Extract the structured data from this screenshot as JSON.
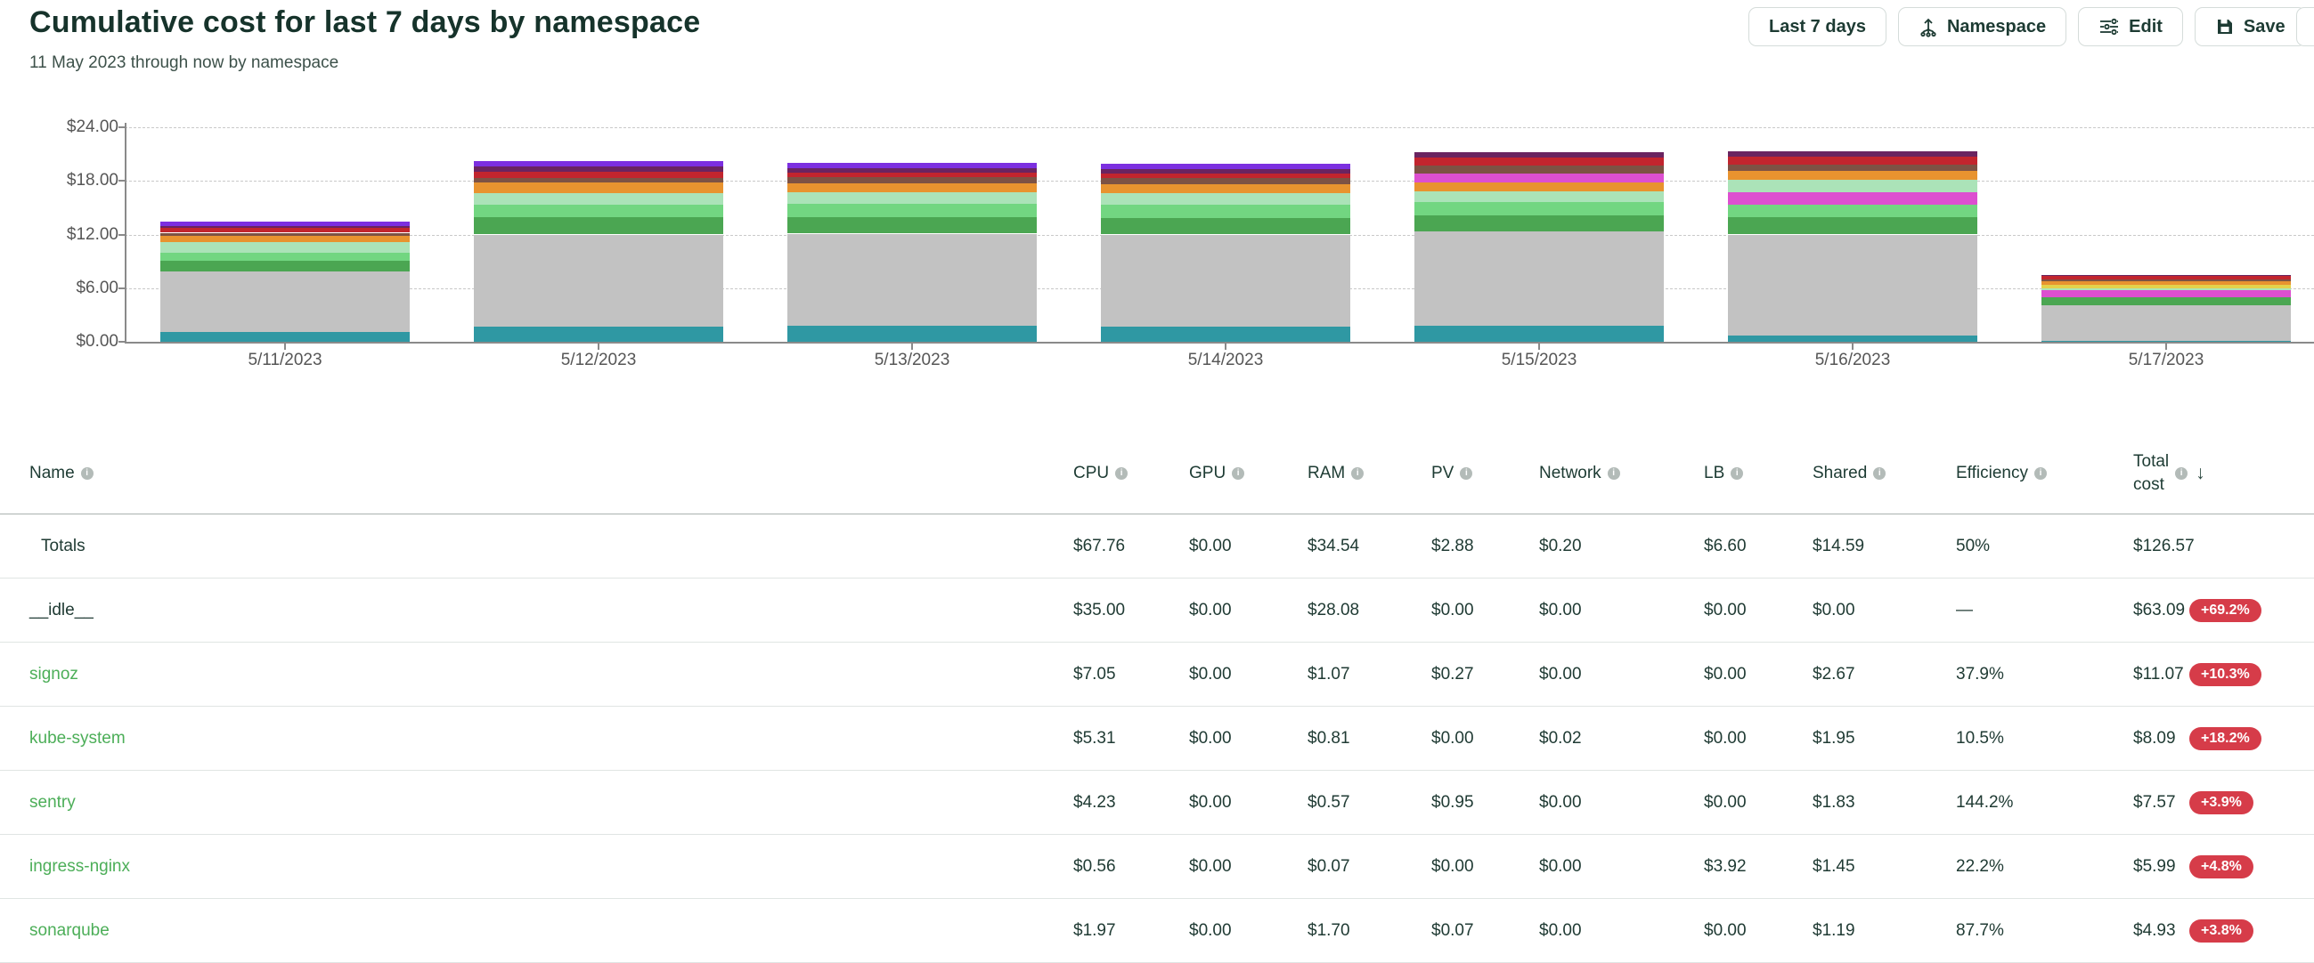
{
  "header": {
    "title": "Cumulative cost for last 7 days by namespace",
    "subtitle": "11 May 2023 through now by namespace",
    "buttons": [
      {
        "label": "Last 7 days",
        "icon": "none"
      },
      {
        "label": "Namespace",
        "icon": "aggregate-icon"
      },
      {
        "label": "Edit",
        "icon": "sliders-icon"
      },
      {
        "label": "Save",
        "icon": "save-icon"
      }
    ]
  },
  "colors": {
    "accent_green": "#4cae58",
    "badge_red": "#d63c49",
    "title_dark": "#16332b",
    "axis_gray": "#8a8a8a",
    "segment_palette": {
      "teal": "#2f98a3",
      "idle_gray": "#c2c2c2",
      "green_dark": "#4ba652",
      "green_med": "#72d681",
      "green_pale": "#abe3b8",
      "orange": "#e8932f",
      "magenta": "#dd4fd0",
      "brown": "#7d5244",
      "yellow": "#e3d24b",
      "red": "#c2252e",
      "plum": "#6a2460",
      "violet": "#7c2fe0"
    }
  },
  "chart_data": {
    "type": "bar",
    "stacked": true,
    "x": [
      "5/11/2023",
      "5/12/2023",
      "5/13/2023",
      "5/14/2023",
      "5/15/2023",
      "5/16/2023",
      "5/17/2023"
    ],
    "yticks": [
      "$0.00",
      "$6.00",
      "$12.00",
      "$18.00",
      "$24.00"
    ],
    "ylim": [
      0,
      24
    ],
    "grid": "horizontal-dashed",
    "legend": "none",
    "bar_totals": [
      13.4,
      20.2,
      20.0,
      19.9,
      21.2,
      21.3,
      7.5
    ],
    "bars": [
      {
        "date": "5/11/2023",
        "segments": [
          [
            "teal",
            1.1
          ],
          [
            "idle_gray",
            6.8
          ],
          [
            "green_dark",
            1.2
          ],
          [
            "green_med",
            0.9
          ],
          [
            "green_pale",
            1.2
          ],
          [
            "orange",
            0.7
          ],
          [
            "brown",
            0.3
          ],
          [
            "red",
            0.5
          ],
          [
            "plum",
            0.2
          ],
          [
            "violet",
            0.5
          ]
        ]
      },
      {
        "date": "5/12/2023",
        "segments": [
          [
            "teal",
            1.7
          ],
          [
            "idle_gray",
            10.3
          ],
          [
            "green_dark",
            1.9
          ],
          [
            "green_med",
            1.4
          ],
          [
            "green_pale",
            1.3
          ],
          [
            "orange",
            1.2
          ],
          [
            "brown",
            0.55
          ],
          [
            "red",
            0.65
          ],
          [
            "plum",
            0.6
          ],
          [
            "violet",
            0.6
          ]
        ]
      },
      {
        "date": "5/13/2023",
        "segments": [
          [
            "teal",
            1.8
          ],
          [
            "idle_gray",
            10.3
          ],
          [
            "green_dark",
            1.8
          ],
          [
            "green_med",
            1.5
          ],
          [
            "green_pale",
            1.3
          ],
          [
            "orange",
            1.0
          ],
          [
            "brown",
            0.7
          ],
          [
            "red",
            0.5
          ],
          [
            "plum",
            0.5
          ],
          [
            "violet",
            0.6
          ]
        ]
      },
      {
        "date": "5/14/2023",
        "segments": [
          [
            "teal",
            1.7
          ],
          [
            "idle_gray",
            10.3
          ],
          [
            "green_dark",
            1.8
          ],
          [
            "green_med",
            1.5
          ],
          [
            "green_pale",
            1.3
          ],
          [
            "orange",
            1.0
          ],
          [
            "brown",
            0.7
          ],
          [
            "red",
            0.5
          ],
          [
            "plum",
            0.5
          ],
          [
            "violet",
            0.6
          ]
        ]
      },
      {
        "date": "5/15/2023",
        "segments": [
          [
            "teal",
            1.8
          ],
          [
            "idle_gray",
            10.5
          ],
          [
            "green_dark",
            1.8
          ],
          [
            "green_med",
            1.5
          ],
          [
            "green_pale",
            1.2
          ],
          [
            "orange",
            1.0
          ],
          [
            "magenta",
            1.05
          ],
          [
            "brown",
            0.9
          ],
          [
            "red",
            0.85
          ],
          [
            "plum",
            0.6
          ]
        ]
      },
      {
        "date": "5/16/2023",
        "segments": [
          [
            "teal",
            0.7
          ],
          [
            "idle_gray",
            11.3
          ],
          [
            "green_dark",
            1.9
          ],
          [
            "green_med",
            1.4
          ],
          [
            "magenta",
            1.4
          ],
          [
            "green_pale",
            1.4
          ],
          [
            "orange",
            1.0
          ],
          [
            "brown",
            0.75
          ],
          [
            "red",
            0.85
          ],
          [
            "plum",
            0.6
          ]
        ]
      },
      {
        "date": "5/17/2023",
        "segments": [
          [
            "teal",
            0.15
          ],
          [
            "idle_gray",
            3.9
          ],
          [
            "green_dark",
            0.9
          ],
          [
            "magenta",
            0.8
          ],
          [
            "green_pale",
            0.25
          ],
          [
            "yellow",
            0.35
          ],
          [
            "orange",
            0.45
          ],
          [
            "brown",
            0.2
          ],
          [
            "red",
            0.35
          ],
          [
            "plum",
            0.15
          ]
        ]
      }
    ]
  },
  "table": {
    "columns": [
      {
        "key": "name",
        "label": "Name",
        "x": 33,
        "info": true
      },
      {
        "key": "cpu",
        "label": "CPU",
        "x": 1205,
        "info": true
      },
      {
        "key": "gpu",
        "label": "GPU",
        "x": 1335,
        "info": true
      },
      {
        "key": "ram",
        "label": "RAM",
        "x": 1468,
        "info": true
      },
      {
        "key": "pv",
        "label": "PV",
        "x": 1607,
        "info": true
      },
      {
        "key": "network",
        "label": "Network",
        "x": 1728,
        "info": true
      },
      {
        "key": "lb",
        "label": "LB",
        "x": 1913,
        "info": true
      },
      {
        "key": "shared",
        "label": "Shared",
        "x": 2035,
        "info": true
      },
      {
        "key": "efficiency",
        "label": "Efficiency",
        "x": 2196,
        "info": true
      },
      {
        "key": "total",
        "label": "Total cost",
        "x": 2395,
        "info": true,
        "sorted": "desc",
        "two_line": true
      }
    ],
    "rows": [
      {
        "name": "Totals",
        "is_link": false,
        "indent": true,
        "cpu": "$67.76",
        "gpu": "$0.00",
        "ram": "$34.54",
        "pv": "$2.88",
        "network": "$0.20",
        "lb": "$6.60",
        "shared": "$14.59",
        "efficiency": "50%",
        "total": "$126.57",
        "badge": null
      },
      {
        "name": "__idle__",
        "is_link": false,
        "indent": false,
        "cpu": "$35.00",
        "gpu": "$0.00",
        "ram": "$28.08",
        "pv": "$0.00",
        "network": "$0.00",
        "lb": "$0.00",
        "shared": "$0.00",
        "efficiency": "—",
        "total": "$63.09",
        "badge": "+69.2%"
      },
      {
        "name": "signoz",
        "is_link": true,
        "indent": false,
        "cpu": "$7.05",
        "gpu": "$0.00",
        "ram": "$1.07",
        "pv": "$0.27",
        "network": "$0.00",
        "lb": "$0.00",
        "shared": "$2.67",
        "efficiency": "37.9%",
        "total": "$11.07",
        "badge": "+10.3%"
      },
      {
        "name": "kube-system",
        "is_link": true,
        "indent": false,
        "cpu": "$5.31",
        "gpu": "$0.00",
        "ram": "$0.81",
        "pv": "$0.00",
        "network": "$0.02",
        "lb": "$0.00",
        "shared": "$1.95",
        "efficiency": "10.5%",
        "total": "$8.09",
        "badge": "+18.2%"
      },
      {
        "name": "sentry",
        "is_link": true,
        "indent": false,
        "cpu": "$4.23",
        "gpu": "$0.00",
        "ram": "$0.57",
        "pv": "$0.95",
        "network": "$0.00",
        "lb": "$0.00",
        "shared": "$1.83",
        "efficiency": "144.2%",
        "total": "$7.57",
        "badge": "+3.9%"
      },
      {
        "name": "ingress-nginx",
        "is_link": true,
        "indent": false,
        "cpu": "$0.56",
        "gpu": "$0.00",
        "ram": "$0.07",
        "pv": "$0.00",
        "network": "$0.00",
        "lb": "$3.92",
        "shared": "$1.45",
        "efficiency": "22.2%",
        "total": "$5.99",
        "badge": "+4.8%"
      },
      {
        "name": "sonarqube",
        "is_link": true,
        "indent": false,
        "cpu": "$1.97",
        "gpu": "$0.00",
        "ram": "$1.70",
        "pv": "$0.07",
        "network": "$0.00",
        "lb": "$0.00",
        "shared": "$1.19",
        "efficiency": "87.7%",
        "total": "$4.93",
        "badge": "+3.8%"
      }
    ]
  }
}
